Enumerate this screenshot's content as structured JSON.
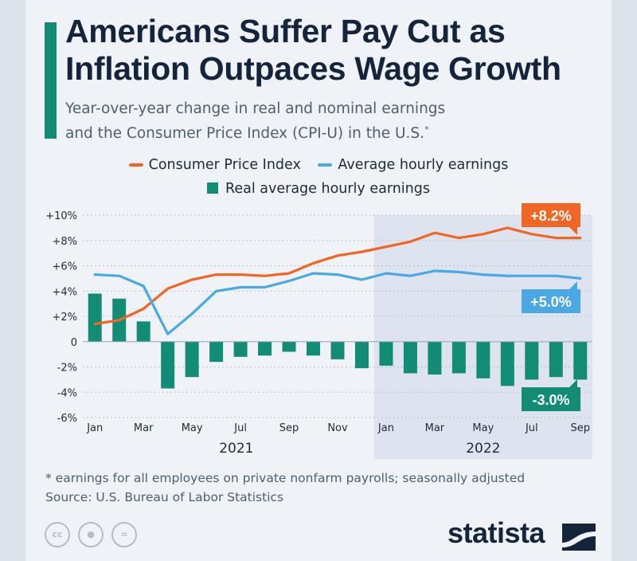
{
  "header": {
    "title_line1": "Americans Suffer Pay Cut as",
    "title_line2": "Inflation Outpaces Wage Growth",
    "subtitle_line1": "Year-over-year change in real and nominal earnings",
    "subtitle_line2": "and the Consumer Price Index (CPI-U) in the U.S.",
    "subtitle_mark": "*"
  },
  "legend": {
    "cpi": "Consumer Price Index",
    "avg": "Average hourly earnings",
    "real": "Real average hourly earnings"
  },
  "colors": {
    "cpi": "#f26522",
    "avg": "#4aa8e5",
    "real": "#138c76",
    "shade": "#dde4f0"
  },
  "chart_data": {
    "type": "line",
    "x": [
      "Jan 2021",
      "Feb 2021",
      "Mar 2021",
      "Apr 2021",
      "May 2021",
      "Jun 2021",
      "Jul 2021",
      "Aug 2021",
      "Sep 2021",
      "Oct 2021",
      "Nov 2021",
      "Dec 2021",
      "Jan 2022",
      "Feb 2022",
      "Mar 2022",
      "Apr 2022",
      "May 2022",
      "Jun 2022",
      "Jul 2022",
      "Aug 2022",
      "Sep 2022"
    ],
    "tick_labels": [
      "Jan",
      "Mar",
      "May",
      "Jul",
      "Sep",
      "Nov",
      "Jan",
      "Mar",
      "May",
      "Jul",
      "Sep"
    ],
    "year_labels": [
      "2021",
      "2022"
    ],
    "y_ticks": [
      "+10%",
      "+8%",
      "+6%",
      "+4%",
      "+2%",
      "0",
      "-2%",
      "-4%",
      "-6%"
    ],
    "ylim": [
      -6,
      10
    ],
    "grid": true,
    "shaded_period": "2022",
    "series": [
      {
        "name": "Consumer Price Index",
        "kind": "line",
        "color": "#f26522",
        "values": [
          1.4,
          1.7,
          2.6,
          4.2,
          4.9,
          5.3,
          5.3,
          5.2,
          5.4,
          6.2,
          6.8,
          7.1,
          7.5,
          7.9,
          8.6,
          8.2,
          8.5,
          9.0,
          8.5,
          8.2,
          8.2
        ]
      },
      {
        "name": "Average hourly earnings",
        "kind": "line",
        "color": "#4aa8e5",
        "values": [
          5.3,
          5.2,
          4.4,
          0.6,
          2.2,
          4.0,
          4.3,
          4.3,
          4.8,
          5.4,
          5.3,
          4.9,
          5.4,
          5.2,
          5.6,
          5.5,
          5.3,
          5.2,
          5.2,
          5.2,
          5.0
        ]
      },
      {
        "name": "Real average hourly earnings",
        "kind": "bar",
        "color": "#138c76",
        "values": [
          3.8,
          3.4,
          1.6,
          -3.7,
          -2.8,
          -1.6,
          -1.2,
          -1.1,
          -0.8,
          -1.1,
          -1.4,
          -2.1,
          -1.9,
          -2.5,
          -2.6,
          -2.5,
          -2.9,
          -3.5,
          -3.0,
          -2.8,
          -3.0
        ]
      }
    ],
    "end_labels": {
      "cpi": "+8.2%",
      "avg": "+5.0%",
      "real": "-3.0%"
    }
  },
  "footer": {
    "footnote": "* earnings for all employees on private nonfarm payrolls; seasonally adjusted",
    "source": "Source: U.S. Bureau of Labor Statistics",
    "brand": "statista",
    "cc_icons": [
      "cc-icon",
      "person-icon",
      "equals-icon"
    ]
  }
}
